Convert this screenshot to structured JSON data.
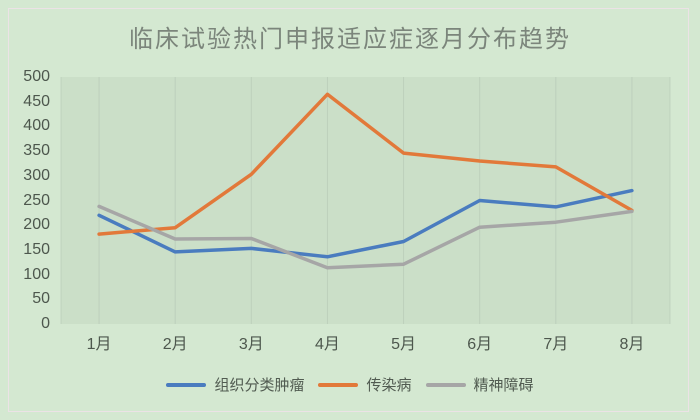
{
  "title": "临床试验热门申报适应症逐月分布趋势",
  "colors": {
    "background": "#d4e8d1",
    "plot_fill": "rgba(96,124,96,0.08)",
    "inner_border": "#ece2e6",
    "gridline": "#aebfae",
    "title_text": "#7b857b",
    "axis_text": "#4d574d",
    "legend_text": "#515b51"
  },
  "chart_data": {
    "type": "line",
    "title": "临床试验热门申报适应症逐月分布趋势",
    "categories": [
      "1月",
      "2月",
      "3月",
      "4月",
      "5月",
      "6月",
      "7月",
      "8月"
    ],
    "series": [
      {
        "name": "组织分类肿瘤",
        "color": "#4a7cbf",
        "values": [
          220,
          146,
          153,
          136,
          167,
          250,
          237,
          270
        ]
      },
      {
        "name": "传染病",
        "color": "#e2793a",
        "values": [
          182,
          195,
          303,
          465,
          346,
          330,
          318,
          230
        ]
      },
      {
        "name": "精神障碍",
        "color": "#a6a6a6",
        "values": [
          238,
          172,
          173,
          114,
          121,
          196,
          206,
          228
        ]
      }
    ],
    "xlabel": "",
    "ylabel": "",
    "ylim": [
      0,
      500
    ],
    "ytick_step": 50,
    "grid": "vertical-category-lines",
    "legend_position": "bottom"
  }
}
